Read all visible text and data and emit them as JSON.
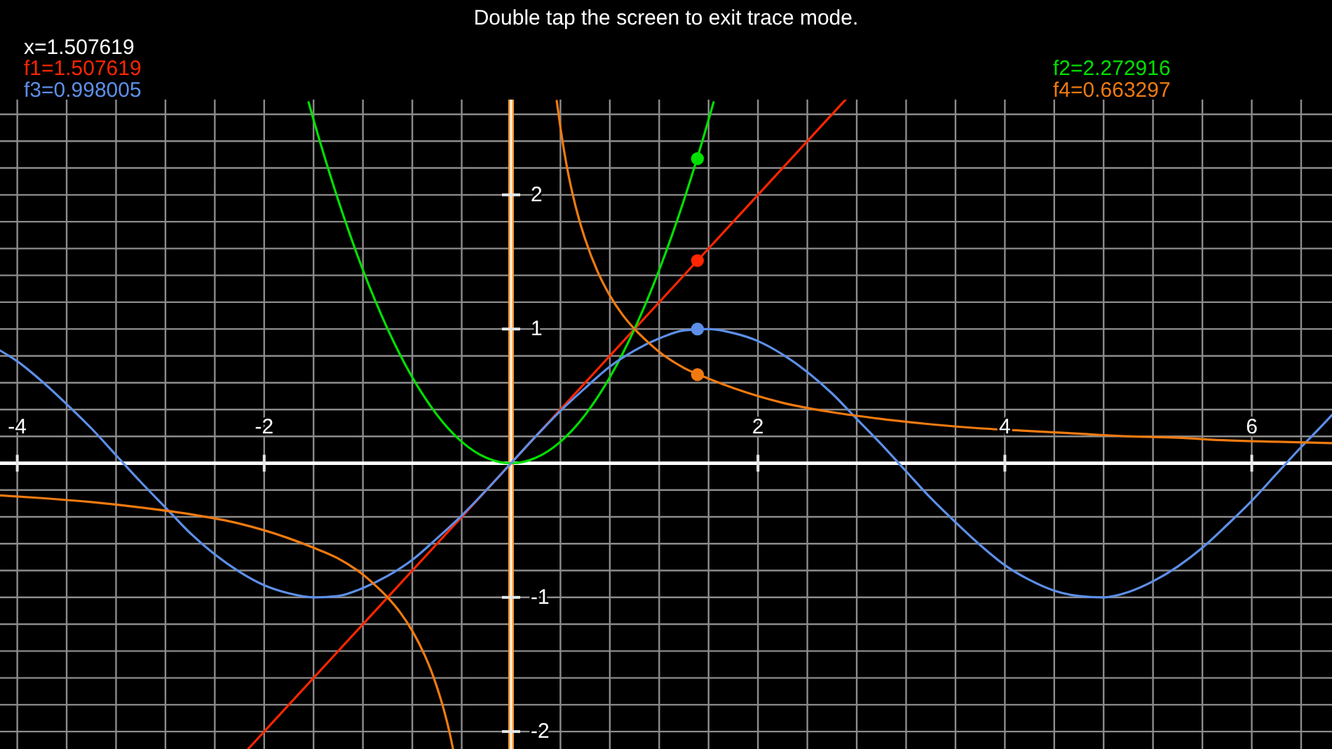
{
  "chart_data": {
    "type": "line",
    "title": "Double tap the screen to exit trace mode.",
    "annotations": [
      "x=1.507619"
    ],
    "xlim": [
      -4.14,
      6.65
    ],
    "ylim": [
      -2.13,
      2.71
    ],
    "xticks": [
      -4,
      {
        "value": -3.6,
        "label": null
      },
      {
        "value": -3.2,
        "label": null
      },
      {
        "value": -2.8,
        "label": null
      },
      {
        "value": -2.4,
        "label": null
      },
      -2,
      {
        "value": -1.6,
        "label": null
      },
      {
        "value": -1.2,
        "label": null
      },
      {
        "value": -0.8,
        "label": null
      },
      {
        "value": -0.4,
        "label": null
      },
      {
        "value": 0.4,
        "label": null
      },
      {
        "value": 0.8,
        "label": null
      },
      {
        "value": 1.2,
        "label": null
      },
      {
        "value": 1.6,
        "label": null
      },
      2,
      {
        "value": 2.4,
        "label": null
      },
      {
        "value": 2.8,
        "label": null
      },
      {
        "value": 3.2,
        "label": null
      },
      {
        "value": 3.6,
        "label": null
      },
      4,
      {
        "value": 4.4,
        "label": null
      },
      {
        "value": 4.8,
        "label": null
      },
      {
        "value": 5.2,
        "label": null
      },
      {
        "value": 5.6,
        "label": null
      },
      6,
      {
        "value": 6.4,
        "label": null
      }
    ],
    "yticks": [
      -2,
      {
        "value": -1.8,
        "label": null
      },
      {
        "value": -1.6,
        "label": null
      },
      {
        "value": -1.4,
        "label": null
      },
      {
        "value": -1.2,
        "label": null
      },
      -1,
      {
        "value": -0.8,
        "label": null
      },
      {
        "value": -0.6,
        "label": null
      },
      {
        "value": -0.4,
        "label": null
      },
      {
        "value": -0.2,
        "label": null
      },
      {
        "value": 0.2,
        "label": null
      },
      {
        "value": 0.4,
        "label": null
      },
      {
        "value": 0.6,
        "label": null
      },
      {
        "value": 0.8,
        "label": null
      },
      1,
      {
        "value": 1.2,
        "label": null
      },
      {
        "value": 1.4,
        "label": null
      },
      {
        "value": 1.6,
        "label": null
      },
      {
        "value": 1.8,
        "label": null
      },
      2,
      {
        "value": 2.2,
        "label": null
      },
      {
        "value": 2.4,
        "label": null
      },
      {
        "value": 2.6,
        "label": null
      }
    ],
    "grid": true,
    "legend": "top",
    "series": [
      {
        "name": "f1=1.507619",
        "color": "#ff2600",
        "x": [
          -2.13,
          -1.5,
          -1,
          -0.5,
          0,
          0.5,
          1,
          1.5,
          2,
          2.5,
          2.71
        ],
        "values": [
          -2.13,
          -1.5,
          -1,
          -0.5,
          0,
          0.5,
          1,
          1.5,
          2,
          2.5,
          2.71
        ]
      },
      {
        "name": "f2=2.272916",
        "color": "#00e000",
        "x": [
          -1.64,
          -1.6,
          -1.5,
          -1.4,
          -1.3,
          -1.2,
          -1.1,
          -1,
          -0.9,
          -0.8,
          -0.7,
          -0.6,
          -0.5,
          -0.4,
          -0.3,
          -0.2,
          -0.1,
          0,
          0.1,
          0.2,
          0.3,
          0.4,
          0.5,
          0.6,
          0.7,
          0.8,
          0.9,
          1,
          1.1,
          1.2,
          1.3,
          1.4,
          1.5,
          1.6,
          1.64
        ],
        "values": [
          2.69,
          2.56,
          2.25,
          1.96,
          1.69,
          1.44,
          1.21,
          1,
          0.81,
          0.64,
          0.49,
          0.36,
          0.25,
          0.16,
          0.09,
          0.04,
          0.01,
          0,
          0.01,
          0.04,
          0.09,
          0.16,
          0.25,
          0.36,
          0.49,
          0.64,
          0.81,
          1,
          1.21,
          1.44,
          1.69,
          1.96,
          2.25,
          2.56,
          2.69
        ]
      },
      {
        "name": "f3=0.998005",
        "color": "#5d8fe8",
        "x": [
          -4.14,
          -4,
          -3.8,
          -3.6,
          -3.4,
          -3.2,
          -3,
          -2.8,
          -2.6,
          -2.4,
          -2.2,
          -2,
          -1.8,
          -1.6,
          -1.4,
          -1.2,
          -1,
          -0.8,
          -0.6,
          -0.4,
          -0.2,
          0,
          0.2,
          0.4,
          0.6,
          0.8,
          1,
          1.2,
          1.4,
          1.6,
          1.8,
          2,
          2.2,
          2.4,
          2.6,
          2.8,
          3,
          3.2,
          3.4,
          3.6,
          3.8,
          4,
          4.2,
          4.4,
          4.6,
          4.8,
          5,
          5.2,
          5.4,
          5.6,
          5.8,
          6,
          6.2,
          6.4,
          6.6,
          6.65
        ],
        "values": [
          0.84,
          0.76,
          0.61,
          0.44,
          0.26,
          0.06,
          -0.14,
          -0.33,
          -0.52,
          -0.68,
          -0.81,
          -0.91,
          -0.97,
          -1,
          -0.99,
          -0.93,
          -0.84,
          -0.72,
          -0.56,
          -0.39,
          -0.2,
          0,
          0.2,
          0.39,
          0.56,
          0.72,
          0.84,
          0.93,
          0.99,
          1,
          0.97,
          0.91,
          0.81,
          0.68,
          0.52,
          0.33,
          0.14,
          -0.06,
          -0.26,
          -0.44,
          -0.61,
          -0.76,
          -0.87,
          -0.95,
          -0.99,
          -1,
          -0.96,
          -0.88,
          -0.77,
          -0.63,
          -0.46,
          -0.28,
          -0.08,
          0.12,
          0.31,
          0.36
        ]
      },
      {
        "name": "f4=0.663297",
        "color": "#f07a10",
        "x": [
          -4.14,
          -3.8,
          -3.4,
          -3,
          -2.6,
          -2.2,
          -2,
          -1.8,
          -1.6,
          -1.4,
          -1.2,
          -1.1,
          -1,
          -0.9,
          -0.8,
          -0.7,
          -0.65,
          -0.6,
          -0.55,
          -0.5,
          -0.47,
          0,
          0.37,
          0.4,
          0.45,
          0.5,
          0.55,
          0.6,
          0.7,
          0.8,
          0.9,
          1,
          1.1,
          1.2,
          1.4,
          1.6,
          1.8,
          2,
          2.2,
          2.6,
          3,
          3.4,
          3.8,
          4.2,
          4.6,
          5,
          5.4,
          5.8,
          6.2,
          6.65
        ],
        "values": [
          -0.24,
          -0.26,
          -0.29,
          -0.33,
          -0.38,
          -0.45,
          -0.5,
          -0.56,
          -0.63,
          -0.71,
          -0.83,
          -0.91,
          -1,
          -1.11,
          -1.25,
          -1.43,
          -1.54,
          -1.67,
          -1.82,
          -2,
          -2.13,
          null,
          2.7,
          2.5,
          2.22,
          2,
          1.82,
          1.67,
          1.43,
          1.25,
          1.11,
          1,
          0.91,
          0.83,
          0.71,
          0.63,
          0.56,
          0.5,
          0.45,
          0.38,
          0.33,
          0.29,
          0.26,
          0.24,
          0.22,
          0.2,
          0.19,
          0.17,
          0.16,
          0.15
        ]
      },
      {
        "type": "scatter",
        "marker": "circle",
        "colors": [
          "#ff2600",
          "#00e000",
          "#5d8fe8",
          "#f07a10"
        ],
        "x": [
          1.51,
          1.51,
          1.51,
          1.51
        ],
        "values": [
          1.51,
          2.27,
          1,
          0.66
        ]
      }
    ]
  }
}
